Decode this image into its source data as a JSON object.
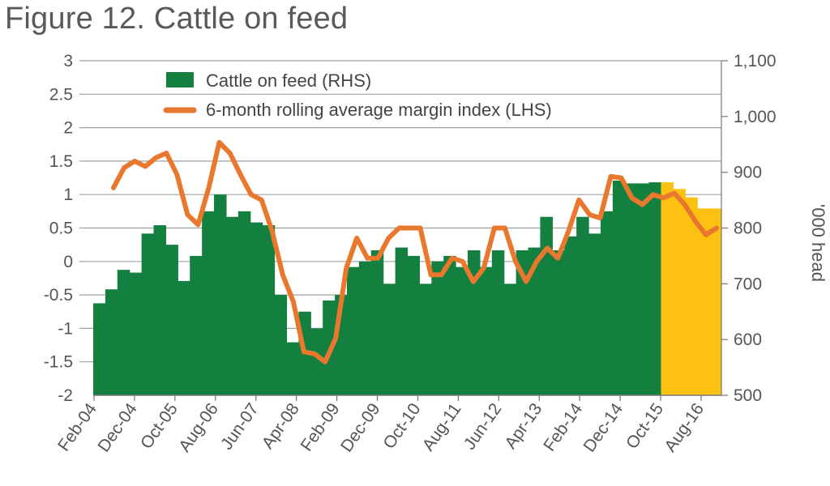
{
  "title": "Figure 12. Cattle on feed",
  "chart_data": {
    "type": "bar",
    "title": "Figure 12. Cattle on feed",
    "left_axis": {
      "label": "",
      "range": [
        -2,
        3
      ],
      "ticks": [
        3,
        2.5,
        2,
        1.5,
        1,
        0.5,
        0,
        -0.5,
        -1,
        -1.5,
        -2
      ]
    },
    "right_axis": {
      "label": "'000 head",
      "range": [
        500,
        1100
      ],
      "ticks": [
        "1,100",
        "1,000",
        "900",
        "800",
        "700",
        "600",
        "500"
      ],
      "tick_values": [
        1100,
        1000,
        900,
        800,
        700,
        600,
        500
      ]
    },
    "x_tick_labels": [
      "Feb-04",
      "Dec-04",
      "Oct-05",
      "Aug-06",
      "Jun-07",
      "Apr-08",
      "Feb-09",
      "Dec-09",
      "Oct-10",
      "Aug-11",
      "Jun-12",
      "Apr-13",
      "Feb-14",
      "Dec-14",
      "Oct-15",
      "Aug-16"
    ],
    "legend": {
      "placement": "top-left",
      "entries": [
        "Cattle on feed (RHS)",
        "6-month rolling average margin index (LHS)"
      ]
    },
    "colors": {
      "bars_actual": "#13803f",
      "bars_forecast": "#fcc111",
      "line": "#e9772e",
      "grid": "#a0a0a0"
    },
    "series": [
      {
        "name": "Cattle on feed (RHS)",
        "type": "bar",
        "axis": "right",
        "forecast_from_index": 47,
        "values": [
          665,
          690,
          725,
          720,
          790,
          805,
          770,
          705,
          750,
          830,
          860,
          820,
          830,
          810,
          805,
          680,
          595,
          650,
          620,
          670,
          680,
          730,
          740,
          760,
          700,
          765,
          750,
          700,
          740,
          750,
          730,
          760,
          730,
          760,
          700,
          760,
          765,
          820,
          760,
          785,
          820,
          790,
          830,
          885,
          880,
          880,
          882,
          882,
          870,
          855,
          835,
          835
        ]
      },
      {
        "name": "6-month rolling average margin index (LHS)",
        "type": "line",
        "axis": "left",
        "values": [
          1.1,
          1.4,
          1.5,
          1.42,
          1.55,
          1.62,
          1.3,
          0.7,
          0.55,
          1.1,
          1.78,
          1.62,
          1.3,
          1.0,
          0.92,
          0.45,
          -0.2,
          -0.6,
          -1.35,
          -1.38,
          -1.5,
          -1.15,
          -0.1,
          0.35,
          0.05,
          0.05,
          0.35,
          0.5,
          0.5,
          0.5,
          -0.2,
          -0.2,
          0.05,
          0.0,
          -0.3,
          -0.1,
          0.5,
          0.5,
          0.0,
          -0.3,
          0.0,
          0.2,
          0.05,
          0.45,
          0.92,
          0.7,
          0.65,
          1.27,
          1.25,
          0.95,
          0.85,
          1.0,
          0.95,
          1.02,
          0.85,
          0.6,
          0.4,
          0.5
        ]
      }
    ]
  }
}
